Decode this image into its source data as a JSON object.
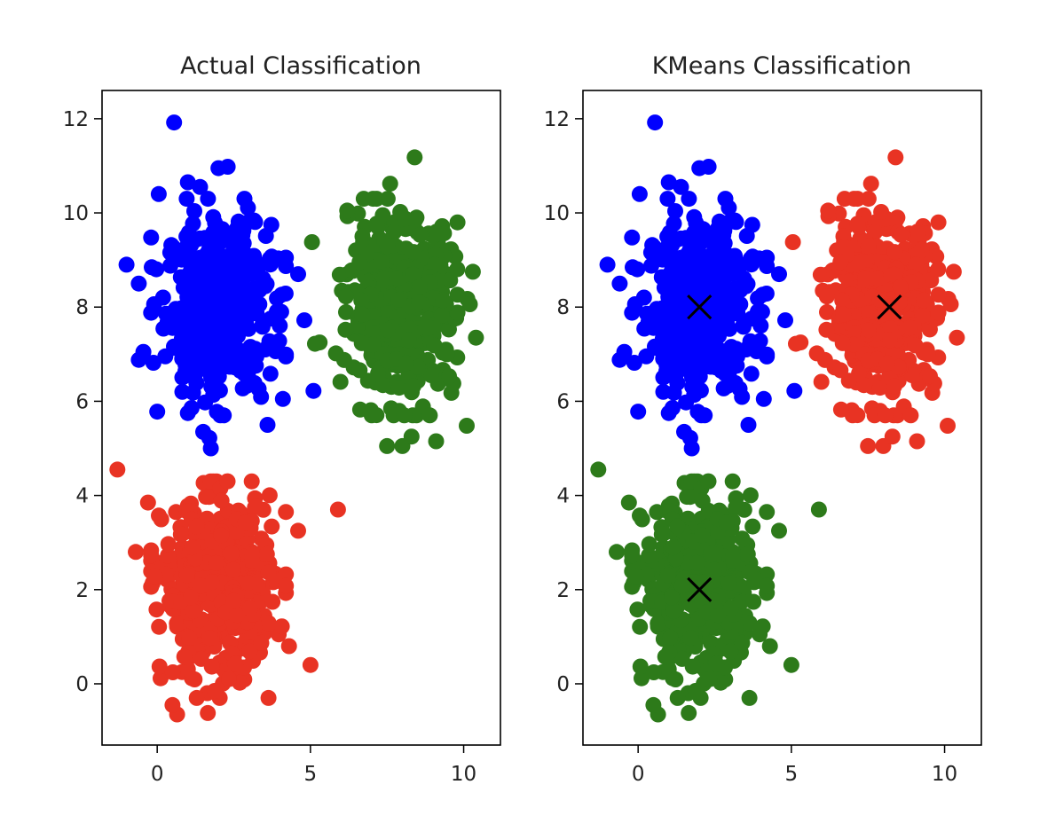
{
  "chart_data": [
    {
      "type": "scatter",
      "title": "Actual Classification",
      "xlabel": "",
      "ylabel": "",
      "xlim": [
        -1.8,
        11.2
      ],
      "ylim": [
        -1.3,
        12.6
      ],
      "x_ticks": [
        0,
        5,
        10
      ],
      "y_ticks": [
        0,
        2,
        4,
        6,
        8,
        10,
        12
      ],
      "grid": false,
      "legend": "none",
      "clusters": [
        {
          "color": "#0000ff",
          "center": [
            2,
            8
          ],
          "spread": [
            0.85,
            0.9
          ],
          "count": 480,
          "extra_points": [
            [
              0.55,
              11.92
            ],
            [
              2.3,
              10.98
            ],
            [
              2.0,
              10.95
            ],
            [
              1.0,
              10.65
            ],
            [
              1.4,
              10.55
            ],
            [
              0.05,
              10.4
            ],
            [
              -1.0,
              8.9
            ],
            [
              -0.6,
              8.5
            ],
            [
              -0.6,
              6.88
            ],
            [
              -0.45,
              7.05
            ],
            [
              0.0,
              5.78
            ],
            [
              1.0,
              5.75
            ],
            [
              1.7,
              5.22
            ],
            [
              1.75,
              5.0
            ],
            [
              3.6,
              5.5
            ],
            [
              5.1,
              6.22
            ],
            [
              4.1,
              6.05
            ],
            [
              4.8,
              7.72
            ],
            [
              4.6,
              8.7
            ],
            [
              1.5,
              5.35
            ]
          ]
        },
        {
          "color": "#2d7a1a",
          "center": [
            8,
            8
          ],
          "spread": [
            0.85,
            0.9
          ],
          "count": 480,
          "extra_points": [
            [
              8.4,
              11.18
            ],
            [
              7.6,
              10.62
            ],
            [
              6.2,
              10.05
            ],
            [
              5.05,
              9.38
            ],
            [
              5.3,
              7.25
            ],
            [
              5.15,
              7.22
            ],
            [
              7.5,
              5.05
            ],
            [
              8.0,
              5.05
            ],
            [
              9.1,
              5.15
            ],
            [
              10.1,
              5.48
            ],
            [
              8.3,
              5.25
            ],
            [
              10.4,
              7.35
            ],
            [
              10.3,
              8.75
            ],
            [
              9.8,
              9.8
            ]
          ]
        },
        {
          "color": "#e83323",
          "center": [
            2,
            2
          ],
          "spread": [
            0.9,
            0.95
          ],
          "count": 480,
          "extra_points": [
            [
              -1.3,
              4.55
            ],
            [
              5.9,
              3.7
            ],
            [
              5.0,
              0.4
            ],
            [
              0.65,
              -0.65
            ],
            [
              1.65,
              -0.62
            ],
            [
              0.5,
              -0.45
            ],
            [
              4.6,
              3.25
            ],
            [
              -0.7,
              2.8
            ],
            [
              -0.3,
              3.85
            ],
            [
              4.3,
              0.8
            ]
          ]
        }
      ]
    },
    {
      "type": "scatter",
      "title": "KMeans Classification",
      "xlabel": "",
      "ylabel": "",
      "xlim": [
        -1.8,
        11.2
      ],
      "ylim": [
        -1.3,
        12.6
      ],
      "x_ticks": [
        0,
        5,
        10
      ],
      "y_ticks": [
        0,
        2,
        4,
        6,
        8,
        10,
        12
      ],
      "grid": false,
      "legend": "none",
      "color_map": {
        "#0000ff": "#0000ff",
        "#2d7a1a": "#e83323",
        "#e83323": "#2d7a1a"
      },
      "centroids": {
        "marker": "x",
        "color": "#000000",
        "points": [
          [
            2.0,
            8.0
          ],
          [
            8.2,
            8.0
          ],
          [
            2.0,
            2.0
          ]
        ]
      }
    }
  ]
}
